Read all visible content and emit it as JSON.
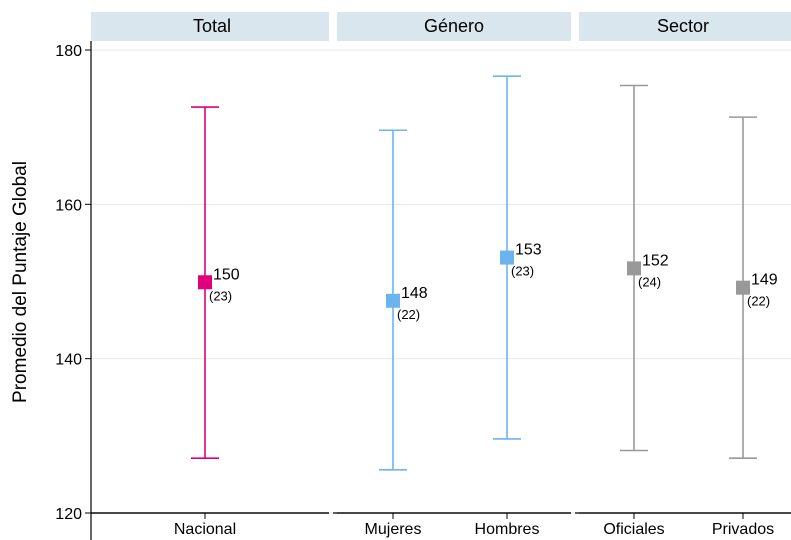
{
  "chart_data": {
    "type": "errorbar",
    "ylabel": "Promedio del Puntaje Global",
    "ylim": [
      120,
      180
    ],
    "yticks": [
      120,
      140,
      160,
      180
    ],
    "grid": true,
    "panels": [
      {
        "title": "Total",
        "color": "#e0007a",
        "points": [
          {
            "label": "Nacional",
            "mean": 150,
            "sd": 23,
            "mean_label": "150",
            "sd_label": "(23)",
            "y": 149.9,
            "low": 127.1,
            "high": 172.6
          }
        ]
      },
      {
        "title": "Género",
        "color": "#6cb4f0",
        "points": [
          {
            "label": "Mujeres",
            "mean": 148,
            "sd": 22,
            "mean_label": "148",
            "sd_label": "(22)",
            "y": 147.5,
            "low": 125.6,
            "high": 169.6
          },
          {
            "label": "Hombres",
            "mean": 153,
            "sd": 23,
            "mean_label": "153",
            "sd_label": "(23)",
            "y": 153.1,
            "low": 129.6,
            "high": 176.6
          }
        ]
      },
      {
        "title": "Sector",
        "color": "#999999",
        "points": [
          {
            "label": "Oficiales",
            "mean": 152,
            "sd": 24,
            "mean_label": "152",
            "sd_label": "(24)",
            "y": 151.7,
            "low": 128.1,
            "high": 175.4
          },
          {
            "label": "Privados",
            "mean": 149,
            "sd": 22,
            "mean_label": "149",
            "sd_label": "(22)",
            "y": 149.2,
            "low": 127.1,
            "high": 171.3
          }
        ]
      }
    ]
  }
}
